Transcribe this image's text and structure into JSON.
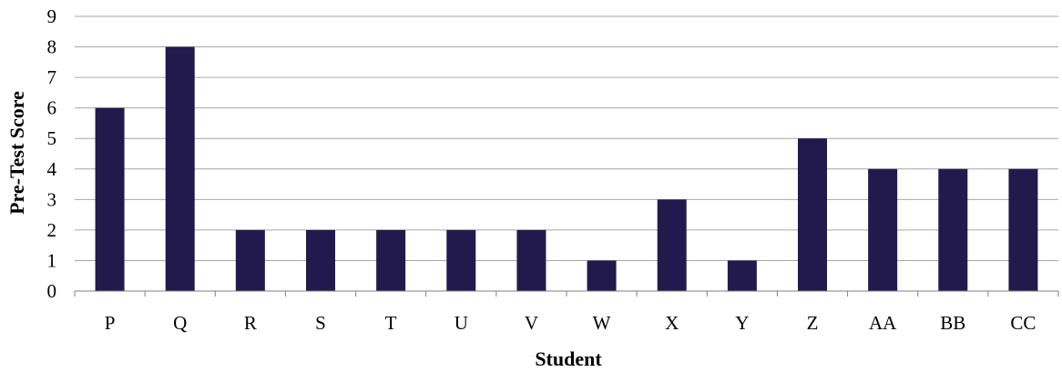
{
  "chart_data": {
    "type": "bar",
    "title": "",
    "xlabel": "Student",
    "ylabel": "Pre-Test Score",
    "categories": [
      "P",
      "Q",
      "R",
      "S",
      "T",
      "U",
      "V",
      "W",
      "X",
      "Y",
      "Z",
      "AA",
      "BB",
      "CC"
    ],
    "values": [
      6,
      8,
      2,
      2,
      2,
      2,
      2,
      1,
      3,
      1,
      5,
      4,
      4,
      4
    ],
    "ylim": [
      0,
      9
    ],
    "yticks": [
      "0",
      "1",
      "2",
      "3",
      "4",
      "5",
      "6",
      "7",
      "8",
      "9"
    ],
    "grid": true,
    "legend": "none",
    "colors": {
      "bar": "#221a4d",
      "gridline": "#a6a6a6",
      "axis": "#7f7f7f"
    }
  }
}
